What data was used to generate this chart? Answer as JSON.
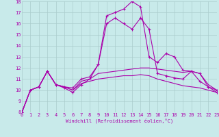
{
  "xlabel": "Windchill (Refroidissement éolien,°C)",
  "bg_color": "#c8eaea",
  "line_color": "#aa00aa",
  "grid_color": "#aacccc",
  "x_values": [
    0,
    1,
    2,
    3,
    4,
    5,
    6,
    7,
    8,
    9,
    10,
    11,
    12,
    13,
    14,
    15,
    16,
    17,
    18,
    19,
    20,
    21,
    22,
    23
  ],
  "ylim": [
    8,
    18
  ],
  "xlim": [
    0,
    23
  ],
  "series_with_markers": [
    [
      8.0,
      10.0,
      10.3,
      11.7,
      10.5,
      10.3,
      10.2,
      11.0,
      11.2,
      12.3,
      16.7,
      17.0,
      17.3,
      18.0,
      17.5,
      13.0,
      12.5,
      13.3,
      13.0,
      11.8,
      11.7,
      11.5,
      10.3,
      10.0
    ],
    [
      8.0,
      10.0,
      10.3,
      11.7,
      10.5,
      10.2,
      9.8,
      10.5,
      11.0,
      12.3,
      16.0,
      16.5,
      16.0,
      15.5,
      16.5,
      15.5,
      11.5,
      11.3,
      11.1,
      11.0,
      11.7,
      10.8,
      10.3,
      9.8
    ]
  ],
  "series_no_markers": [
    [
      8.0,
      10.0,
      10.3,
      11.7,
      10.5,
      10.3,
      10.0,
      10.8,
      11.0,
      11.5,
      11.6,
      11.7,
      11.8,
      11.9,
      12.0,
      12.0,
      11.9,
      11.8,
      11.7,
      11.6,
      11.7,
      11.5,
      10.5,
      10.0
    ],
    [
      8.0,
      10.0,
      10.3,
      11.7,
      10.5,
      10.3,
      10.0,
      10.6,
      10.8,
      11.0,
      11.1,
      11.2,
      11.3,
      11.3,
      11.4,
      11.3,
      11.0,
      10.8,
      10.6,
      10.4,
      10.3,
      10.2,
      10.0,
      9.8
    ]
  ]
}
